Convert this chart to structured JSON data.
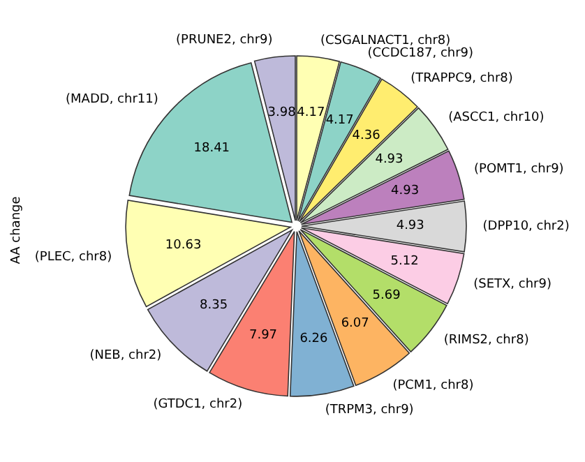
{
  "chart_data": {
    "type": "pie",
    "ylabel": "AA change",
    "categories": [
      "(PRUNE2, chr9)",
      "(MADD, chr11)",
      "(PLEC, chr8)",
      "(NEB, chr2)",
      "(GTDC1, chr2)",
      "(TRPM3, chr9)",
      "(PCM1, chr8)",
      "(RIMS2, chr8)",
      "(SETX, chr9)",
      "(DPP10, chr2)",
      "(POMT1, chr9)",
      "(ASCC1, chr10)",
      "(TRAPPC9, chr8)",
      "(CCDC187, chr9)",
      "(CSGALNACT1, chr8)"
    ],
    "values": [
      3.98,
      18.41,
      10.63,
      8.35,
      7.97,
      6.26,
      6.07,
      5.69,
      5.12,
      4.93,
      4.93,
      4.93,
      4.36,
      4.17,
      4.17
    ],
    "colors": [
      "#bebada",
      "#8dd3c7",
      "#ffffb3",
      "#bebada",
      "#fb8072",
      "#80b1d3",
      "#fdb462",
      "#b3de69",
      "#fccde5",
      "#d9d9d9",
      "#bc80bd",
      "#ccebc5",
      "#ffed6f",
      "#8dd3c7",
      "#ffffb3"
    ],
    "data_labels": true
  }
}
